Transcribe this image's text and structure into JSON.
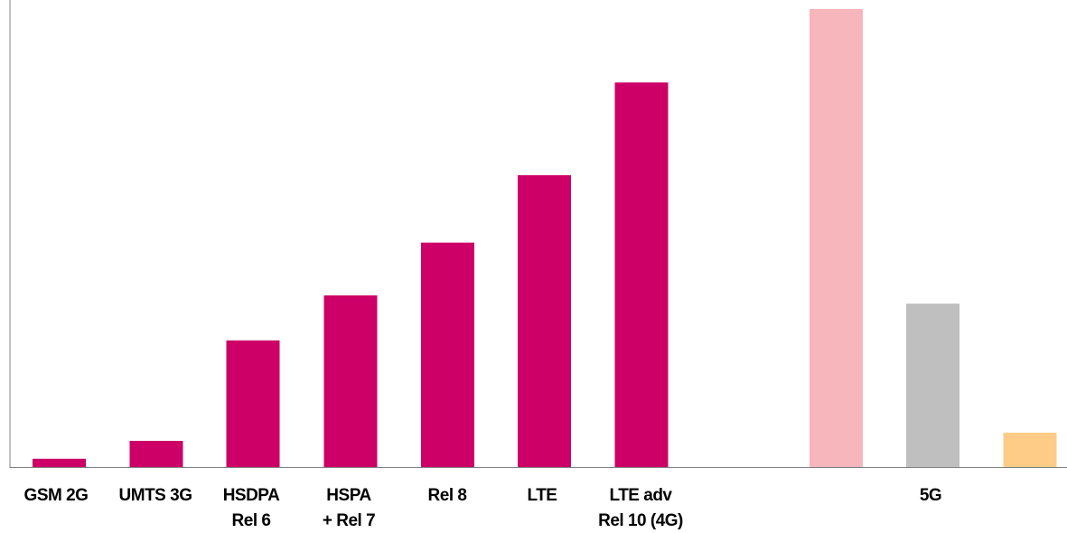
{
  "chart_data": {
    "type": "bar",
    "title": "",
    "xlabel": "",
    "ylabel": "",
    "ylim": [
      0,
      100
    ],
    "grid": false,
    "legend": "none",
    "bars": [
      {
        "label": [
          "GSM 2G"
        ],
        "value": 2.0,
        "color": "#CC0066"
      },
      {
        "label": [
          "UMTS 3G"
        ],
        "value": 5.9,
        "color": "#CC0066"
      },
      {
        "label": [
          "HSDPA",
          "Rel 6"
        ],
        "value": 27.8,
        "color": "#CC0066"
      },
      {
        "label": [
          "HSPA",
          "+ Rel 7"
        ],
        "value": 37.6,
        "color": "#CC0066"
      },
      {
        "label": [
          "Rel 8"
        ],
        "value": 49.1,
        "color": "#CC0066"
      },
      {
        "label": [
          "LTE"
        ],
        "value": 63.8,
        "color": "#CC0066"
      },
      {
        "label": [
          "LTE adv",
          "Rel 10 (4G)"
        ],
        "value": 84.0,
        "color": "#CC0066"
      },
      {
        "label": [],
        "value": 100.0,
        "color": "#F7B6BC"
      },
      {
        "label": [
          "5G"
        ],
        "value": 35.8,
        "color": "#BFBFBF"
      },
      {
        "label": [],
        "value": 7.7,
        "color": "#FFCC88"
      }
    ]
  }
}
